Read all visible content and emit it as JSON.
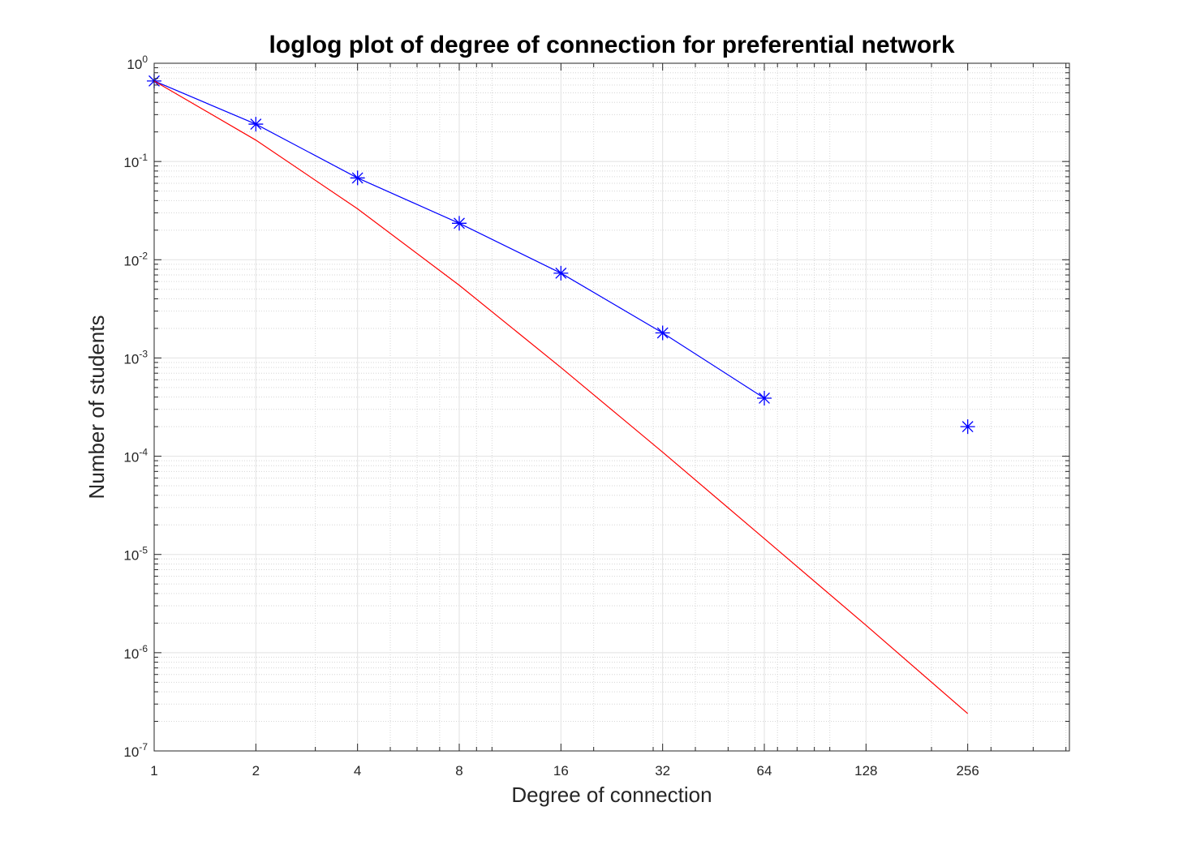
{
  "chart_data": {
    "type": "line",
    "title": "loglog plot of degree of connection for preferential network",
    "xlabel": "Degree of connection",
    "ylabel": "Number of students",
    "x_scale": "log",
    "y_scale": "log",
    "xlim": [
      1,
      512
    ],
    "ylim": [
      1e-07,
      1
    ],
    "grid": true,
    "minor_grid": true,
    "x_ticks": [
      1,
      2,
      4,
      8,
      16,
      32,
      64,
      128,
      256
    ],
    "x_tick_labels": [
      "1",
      "2",
      "4",
      "8",
      "16",
      "32",
      "64",
      "128",
      "256"
    ],
    "y_ticks": [
      1e-07,
      1e-06,
      1e-05,
      0.0001,
      0.001,
      0.01,
      0.1,
      1
    ],
    "y_tick_labels": [
      {
        "base": "10",
        "exp": "-7"
      },
      {
        "base": "10",
        "exp": "-6"
      },
      {
        "base": "10",
        "exp": "-5"
      },
      {
        "base": "10",
        "exp": "-4"
      },
      {
        "base": "10",
        "exp": "-3"
      },
      {
        "base": "10",
        "exp": "-2"
      },
      {
        "base": "10",
        "exp": "-1"
      },
      {
        "base": "10",
        "exp": "0"
      }
    ],
    "series": [
      {
        "color": "#0000ff",
        "marker": "asterisk",
        "line": true,
        "x": [
          1,
          2,
          4,
          8,
          16,
          32,
          64
        ],
        "y": [
          0.66,
          0.24,
          0.068,
          0.0235,
          0.0073,
          0.0018,
          0.00039
        ]
      },
      {
        "color": "#0000ff",
        "marker": "asterisk",
        "line": false,
        "x": [
          256
        ],
        "y": [
          0.0002
        ]
      },
      {
        "color": "#ff0000",
        "marker": "none",
        "line": true,
        "x": [
          1,
          2,
          4,
          8,
          16,
          32,
          64,
          128,
          256
        ],
        "y": [
          0.66,
          0.165,
          0.033,
          0.0055,
          0.0008,
          0.00011,
          1.45e-05,
          1.9e-06,
          2.4e-07
        ]
      }
    ]
  }
}
